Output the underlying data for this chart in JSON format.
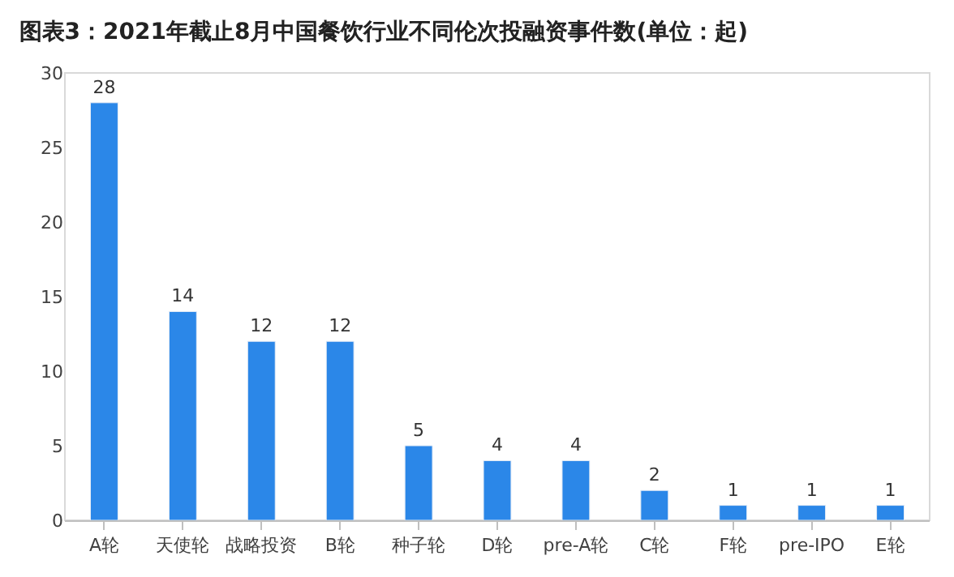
{
  "chart_data": {
    "type": "bar",
    "title": "图表3：2021年截止8月中国餐饮行业不同伦次投融资事件数(单位：起)",
    "categories": [
      "A轮",
      "天使轮",
      "战略投资",
      "B轮",
      "种子轮",
      "D轮",
      "pre-A轮",
      "C轮",
      "F轮",
      "pre-IPO",
      "E轮"
    ],
    "values": [
      28,
      14,
      12,
      12,
      5,
      4,
      4,
      2,
      1,
      1,
      1
    ],
    "color": "#2b87e8",
    "ylim": [
      0,
      30
    ],
    "yticks": [
      0,
      5,
      10,
      15,
      20,
      25,
      30
    ],
    "data_labels": true
  }
}
